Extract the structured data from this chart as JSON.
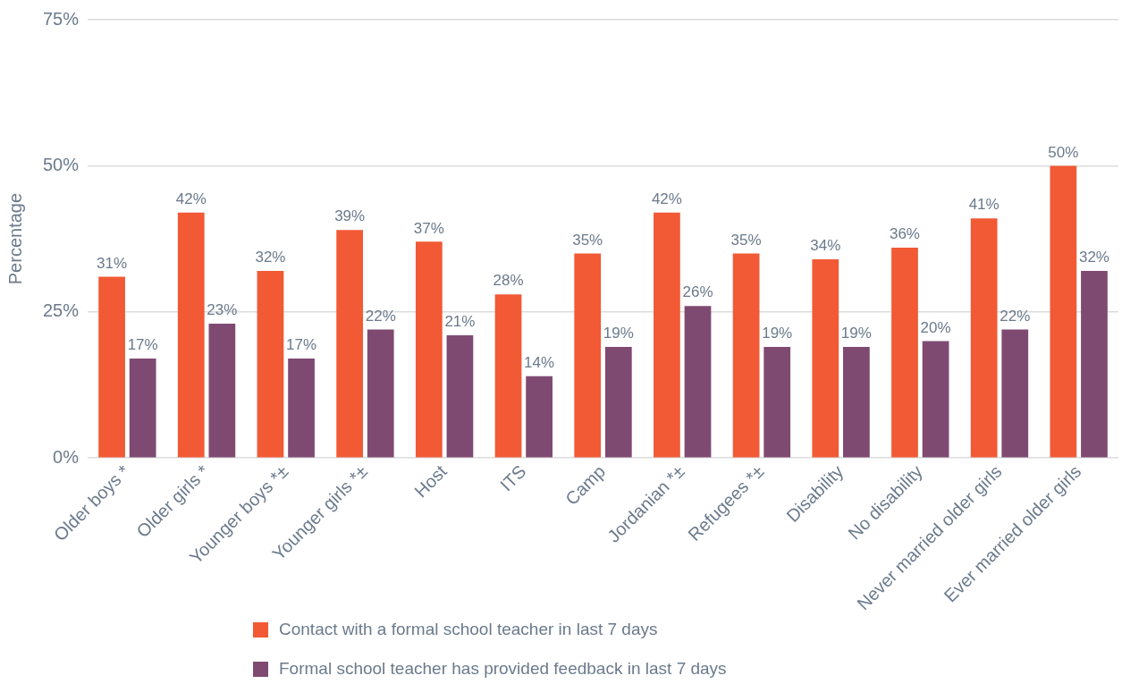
{
  "chart_data": {
    "type": "bar",
    "ylabel": "Percentage",
    "categories": [
      "Older boys *",
      "Older girls *",
      "Younger boys *±",
      "Younger girls *±",
      "Host",
      "ITS",
      "Camp",
      "Jordanian *±",
      "Refugees *±",
      "Disability",
      "No disability",
      "Never married older girls",
      "Ever married older girls"
    ],
    "series": [
      {
        "name": "Contact with a formal school teacher in last 7 days",
        "color": "#f15a35",
        "values": [
          31,
          42,
          32,
          39,
          37,
          28,
          35,
          42,
          35,
          34,
          36,
          41,
          50
        ],
        "value_labels": [
          "31%",
          "42%",
          "32%",
          "39%",
          "37%",
          "28%",
          "35%",
          "42%",
          "35%",
          "34%",
          "36%",
          "41%",
          "50%"
        ]
      },
      {
        "name": "Formal school teacher has provided feedback in last 7 days",
        "color": "#7f4a72",
        "values": [
          17,
          23,
          17,
          22,
          21,
          14,
          19,
          26,
          19,
          19,
          20,
          22,
          32
        ],
        "value_labels": [
          "17%",
          "23%",
          "17%",
          "22%",
          "21%",
          "14%",
          "19%",
          "26%",
          "19%",
          "19%",
          "20%",
          "22%",
          "32%"
        ]
      }
    ],
    "ylim": [
      0,
      75
    ],
    "yticks": [
      {
        "value": 0,
        "label": "0%"
      },
      {
        "value": 25,
        "label": "25%"
      },
      {
        "value": 50,
        "label": "50%"
      },
      {
        "value": 75,
        "label": "75%"
      }
    ],
    "grid": "y",
    "legend": "bottom"
  }
}
